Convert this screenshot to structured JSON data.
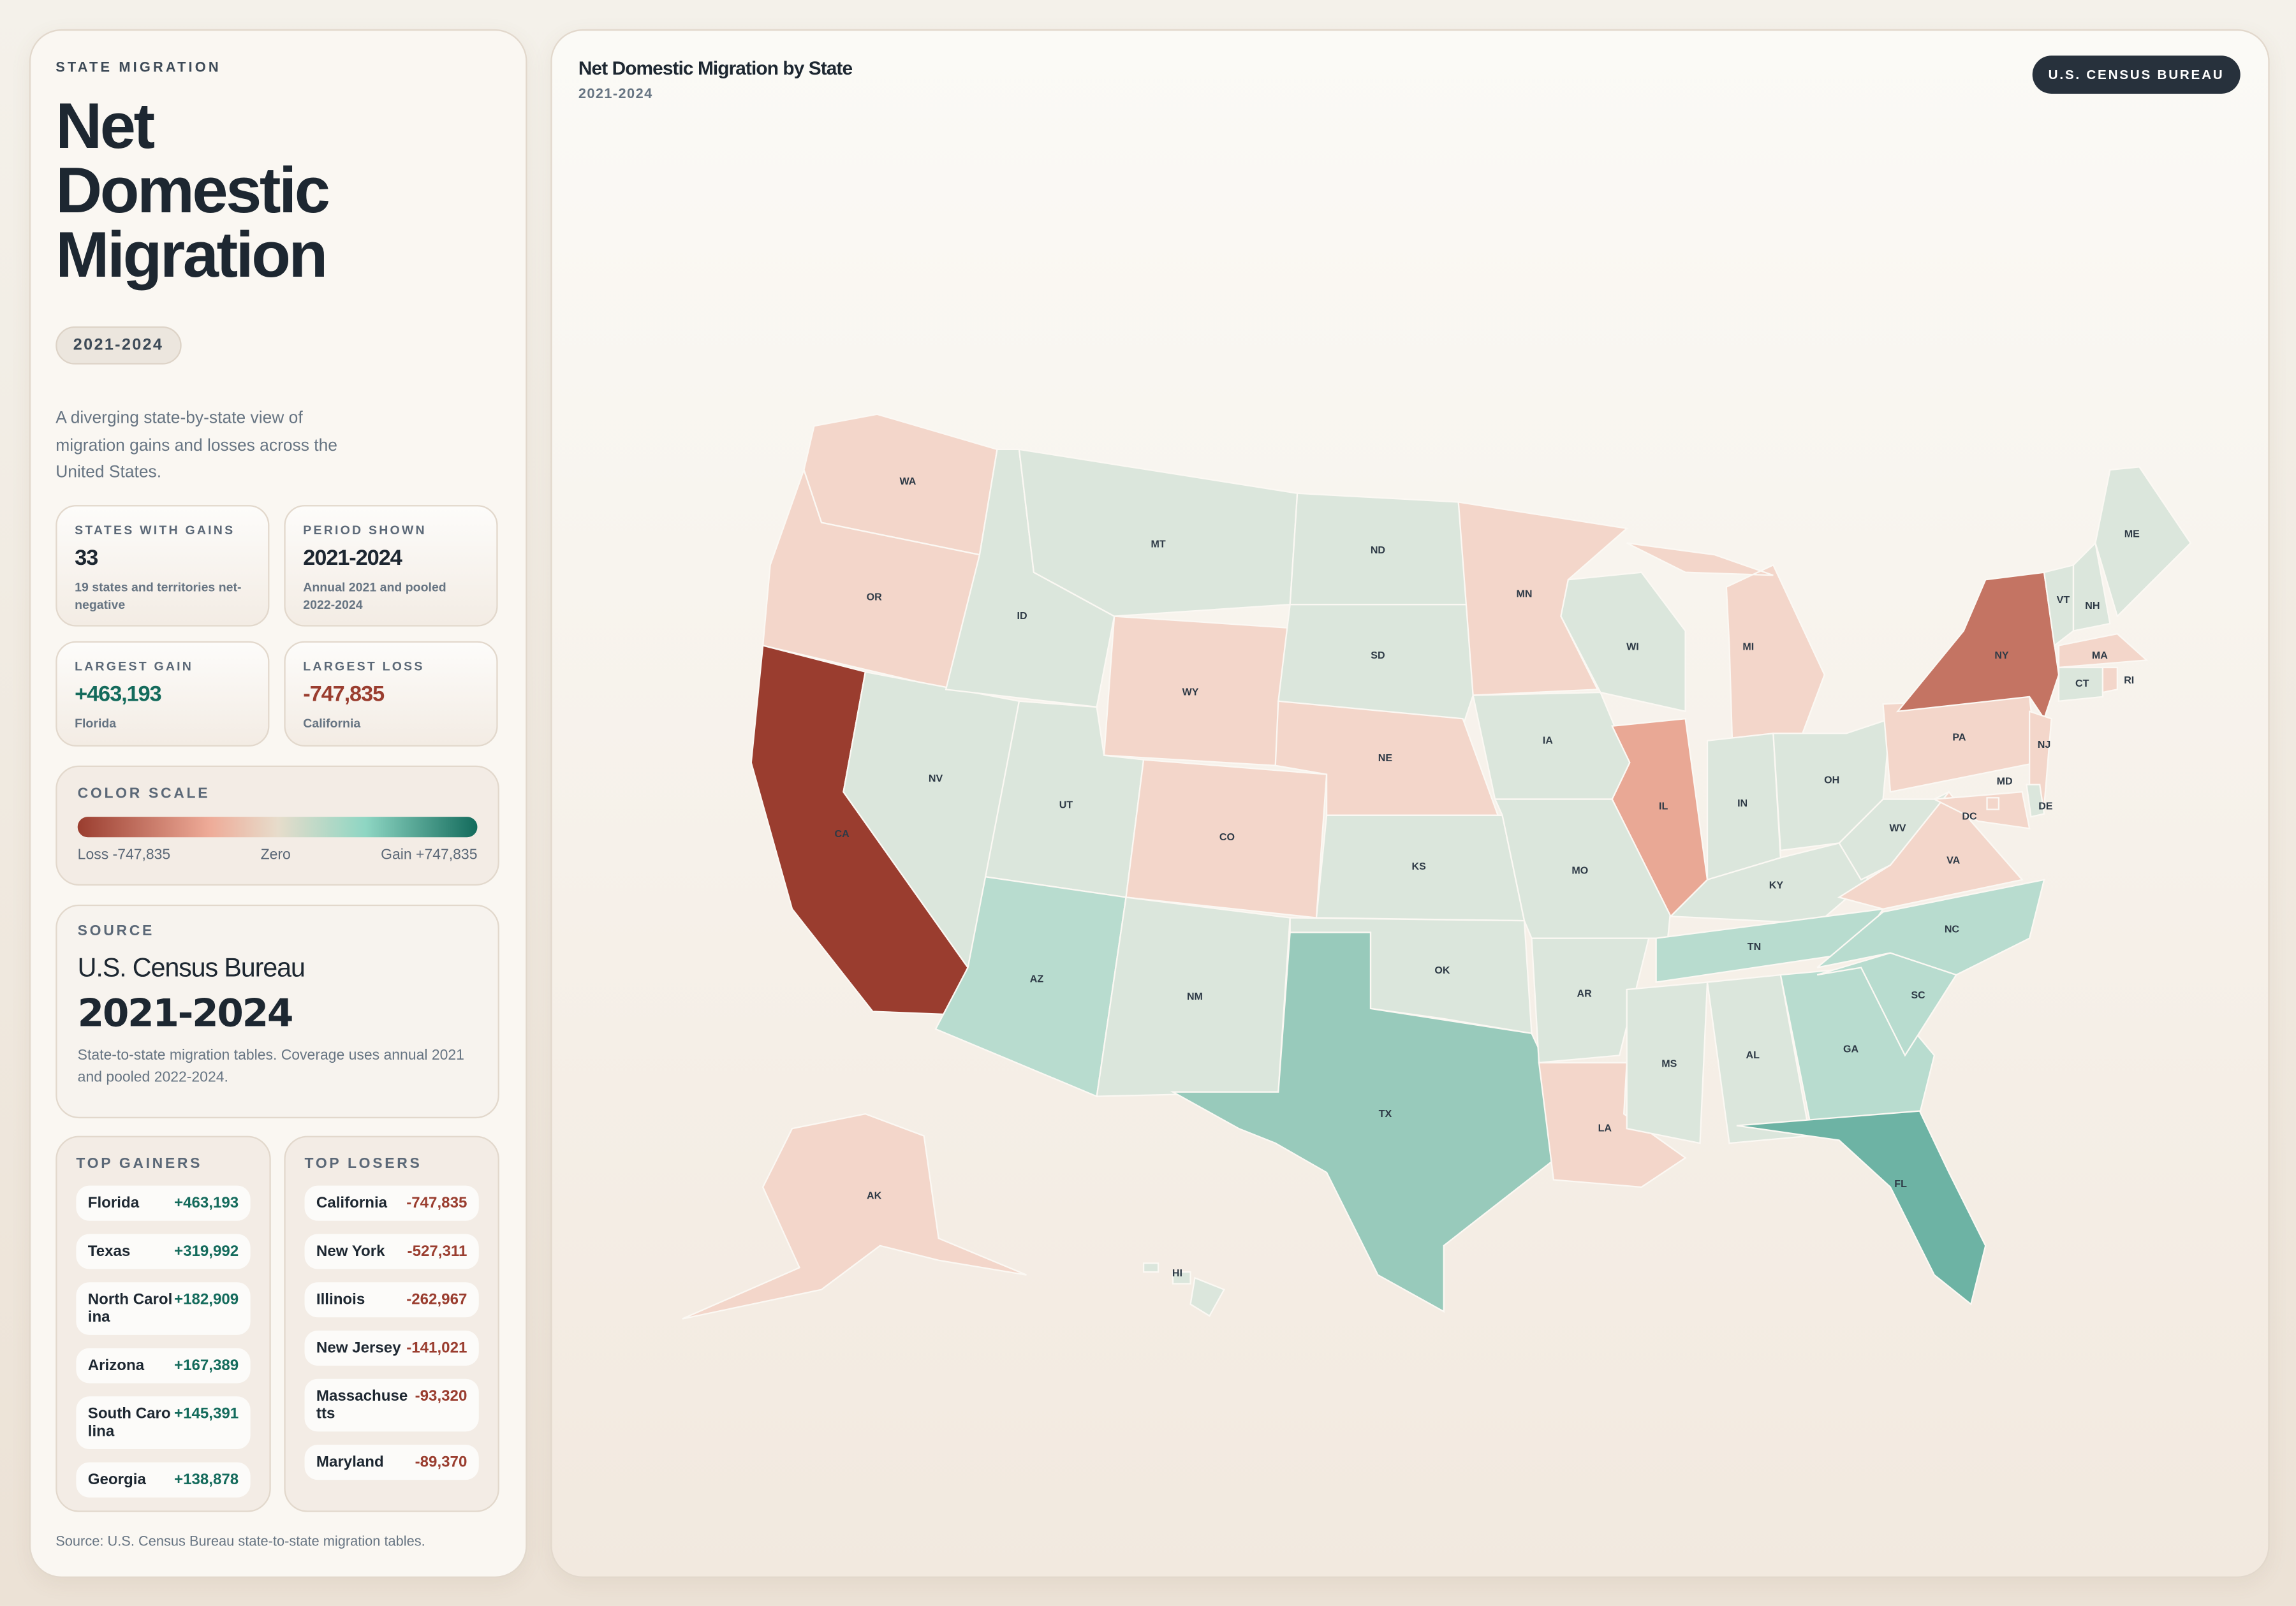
{
  "sidebar": {
    "eyebrow": "STATE MIGRATION",
    "title": "Net Domestic Migration",
    "period_pill": "2021-2024",
    "description": "A diverging state-by-state view of migration gains and losses across the United States.",
    "cards": [
      {
        "label": "STATES WITH GAINS",
        "value": "33",
        "sub": "19 states and territories net-negative"
      },
      {
        "label": "PERIOD SHOWN",
        "value": "2021-2024",
        "sub": "Annual 2021 and pooled 2022-2024"
      },
      {
        "label": "LARGEST GAIN",
        "value": "+463,193",
        "sub": "Florida"
      },
      {
        "label": "LARGEST LOSS",
        "value": "-747,835",
        "sub": "California"
      }
    ],
    "color_scale": {
      "label": "COLOR SCALE",
      "min_label": "Loss -747,835",
      "mid_label": "Zero",
      "max_label": "Gain +747,835",
      "colors": [
        "#9a3d2f",
        "#eeab98",
        "#e7dccb",
        "#8ed6c3",
        "#136b5c"
      ]
    },
    "source": {
      "label": "SOURCE",
      "name": "U.S. Census Bureau",
      "years": "2021-2024",
      "note": "State-to-state migration tables. Coverage uses annual 2021 and pooled 2022-2024."
    },
    "top_gainers": {
      "label": "TOP GAINERS",
      "items": [
        {
          "state": "Florida",
          "value": "+463,193"
        },
        {
          "state": "Texas",
          "value": "+319,992"
        },
        {
          "state": "North Carolina",
          "value": "+182,909"
        },
        {
          "state": "Arizona",
          "value": "+167,389"
        },
        {
          "state": "South Carolina",
          "value": "+145,391"
        },
        {
          "state": "Georgia",
          "value": "+138,878"
        }
      ]
    },
    "top_losers": {
      "label": "TOP LOSERS",
      "items": [
        {
          "state": "California",
          "value": "-747,835"
        },
        {
          "state": "New York",
          "value": "-527,311"
        },
        {
          "state": "Illinois",
          "value": "-262,967"
        },
        {
          "state": "New Jersey",
          "value": "-141,021"
        },
        {
          "state": "Massachusetts",
          "value": "-93,320"
        },
        {
          "state": "Maryland",
          "value": "-89,370"
        }
      ]
    },
    "footnote": "Source: U.S. Census Bureau state-to-state migration tables."
  },
  "map": {
    "title": "Net Domestic Migration by State",
    "subtitle": "2021-2024",
    "badge": "U.S. CENSUS BUREAU",
    "fills": {
      "loss_strong": "#9a3d2f",
      "loss_high": "#c47463",
      "loss_mid": "#e9a895",
      "loss_low": "#f3d6ca",
      "gain_low": "#dbe6dc",
      "gain_mid": "#b8dccf",
      "gain_high": "#98cabb",
      "gain_top": "#6db3a4"
    },
    "states": [
      {
        "abbr": "WA",
        "fill": "loss_low"
      },
      {
        "abbr": "OR",
        "fill": "loss_low"
      },
      {
        "abbr": "CA",
        "fill": "loss_strong"
      },
      {
        "abbr": "NV",
        "fill": "gain_low"
      },
      {
        "abbr": "ID",
        "fill": "gain_low"
      },
      {
        "abbr": "MT",
        "fill": "gain_low"
      },
      {
        "abbr": "WY",
        "fill": "loss_low"
      },
      {
        "abbr": "UT",
        "fill": "gain_low"
      },
      {
        "abbr": "CO",
        "fill": "loss_low"
      },
      {
        "abbr": "AZ",
        "fill": "gain_mid"
      },
      {
        "abbr": "NM",
        "fill": "gain_low"
      },
      {
        "abbr": "ND",
        "fill": "gain_low"
      },
      {
        "abbr": "SD",
        "fill": "gain_low"
      },
      {
        "abbr": "NE",
        "fill": "loss_low"
      },
      {
        "abbr": "KS",
        "fill": "gain_low"
      },
      {
        "abbr": "OK",
        "fill": "gain_low"
      },
      {
        "abbr": "TX",
        "fill": "gain_high"
      },
      {
        "abbr": "MN",
        "fill": "loss_low"
      },
      {
        "abbr": "IA",
        "fill": "gain_low"
      },
      {
        "abbr": "MO",
        "fill": "gain_low"
      },
      {
        "abbr": "AR",
        "fill": "gain_low"
      },
      {
        "abbr": "LA",
        "fill": "loss_low"
      },
      {
        "abbr": "WI",
        "fill": "gain_low"
      },
      {
        "abbr": "IL",
        "fill": "loss_mid"
      },
      {
        "abbr": "MI",
        "fill": "loss_low"
      },
      {
        "abbr": "IN",
        "fill": "gain_low"
      },
      {
        "abbr": "OH",
        "fill": "gain_low"
      },
      {
        "abbr": "KY",
        "fill": "gain_low"
      },
      {
        "abbr": "TN",
        "fill": "gain_mid"
      },
      {
        "abbr": "MS",
        "fill": "gain_low"
      },
      {
        "abbr": "AL",
        "fill": "gain_low"
      },
      {
        "abbr": "GA",
        "fill": "gain_mid"
      },
      {
        "abbr": "FL",
        "fill": "gain_top"
      },
      {
        "abbr": "SC",
        "fill": "gain_mid"
      },
      {
        "abbr": "NC",
        "fill": "gain_mid"
      },
      {
        "abbr": "VA",
        "fill": "loss_low"
      },
      {
        "abbr": "WV",
        "fill": "gain_low"
      },
      {
        "abbr": "PA",
        "fill": "loss_low"
      },
      {
        "abbr": "NY",
        "fill": "loss_high"
      },
      {
        "abbr": "NJ",
        "fill": "loss_low"
      },
      {
        "abbr": "MD",
        "fill": "loss_low"
      },
      {
        "abbr": "DE",
        "fill": "gain_low"
      },
      {
        "abbr": "DC",
        "fill": "loss_low"
      },
      {
        "abbr": "VT",
        "fill": "gain_low"
      },
      {
        "abbr": "NH",
        "fill": "gain_low"
      },
      {
        "abbr": "ME",
        "fill": "gain_low"
      },
      {
        "abbr": "MA",
        "fill": "loss_low"
      },
      {
        "abbr": "CT",
        "fill": "gain_low"
      },
      {
        "abbr": "RI",
        "fill": "loss_low"
      },
      {
        "abbr": "AK",
        "fill": "loss_low"
      },
      {
        "abbr": "HI",
        "fill": "gain_low"
      }
    ]
  }
}
